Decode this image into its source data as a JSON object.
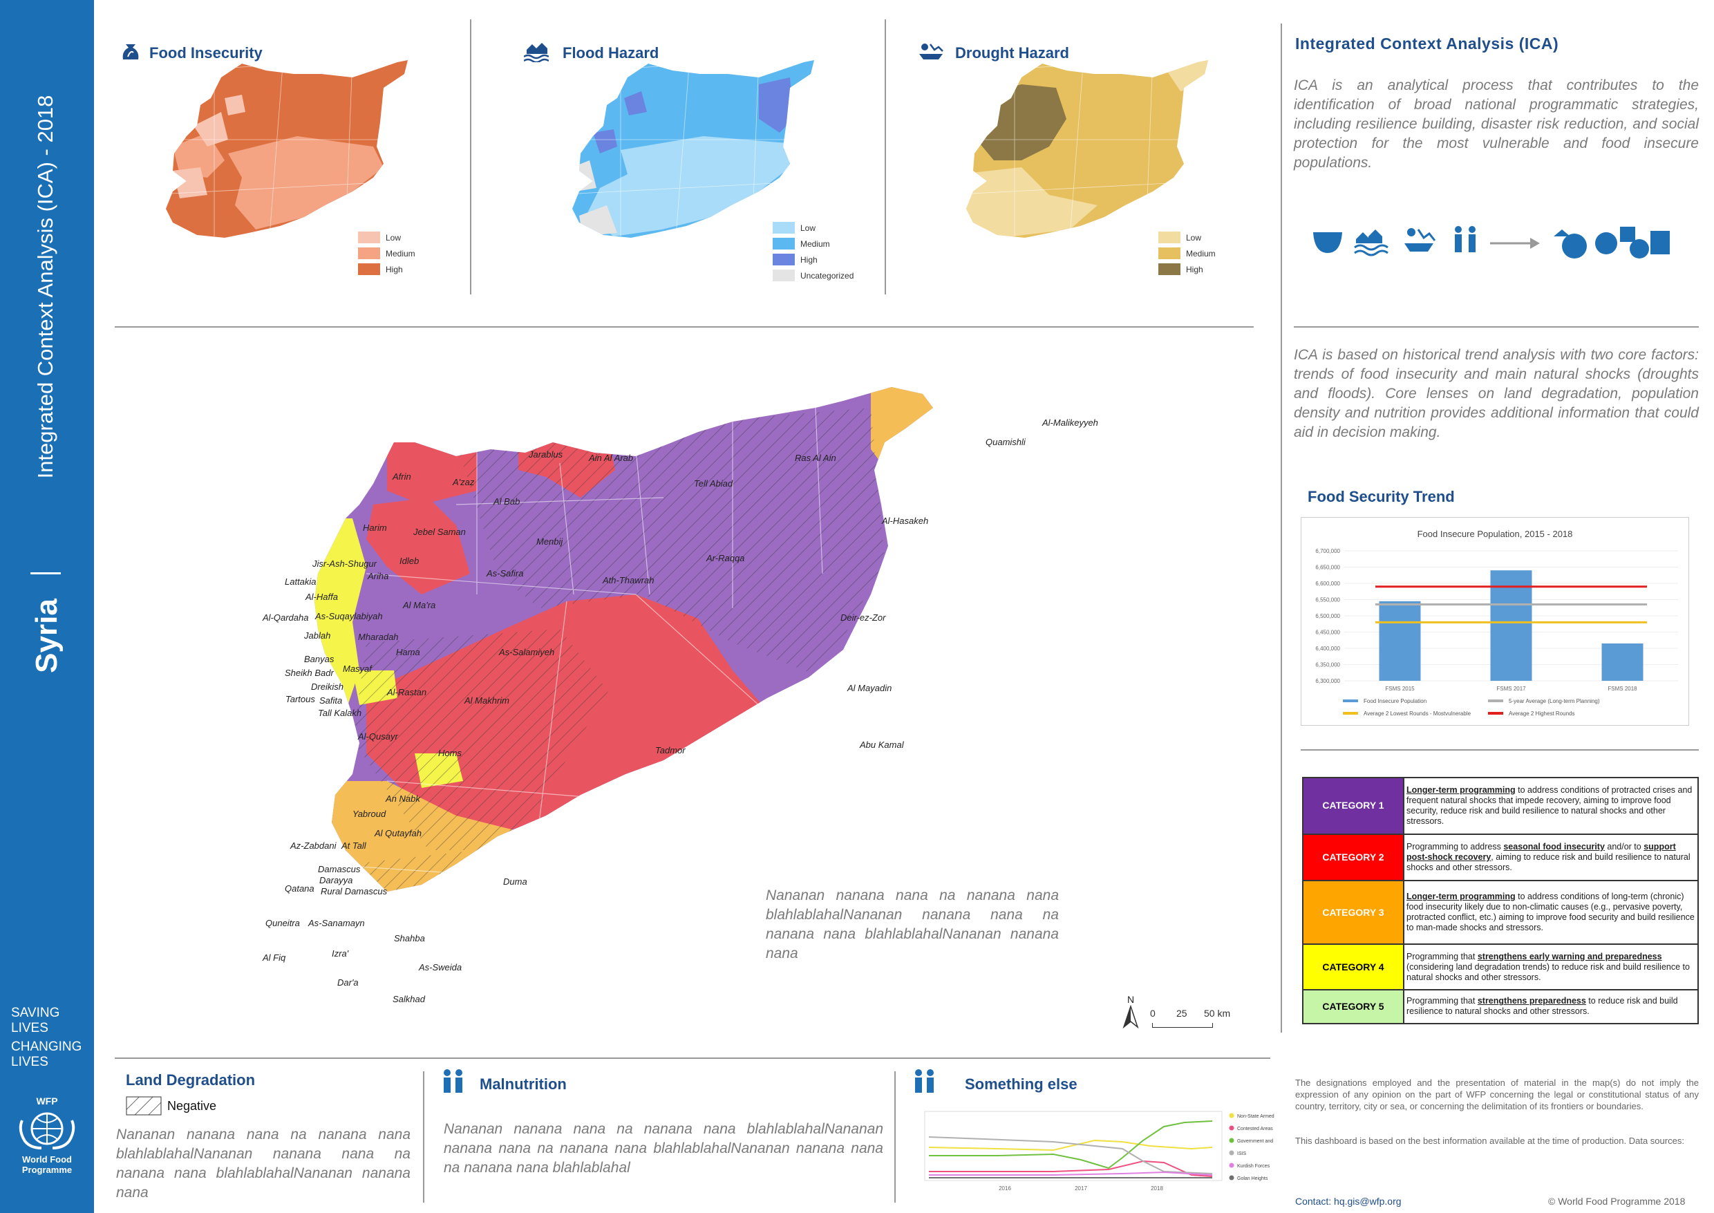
{
  "sidebar": {
    "country": "Syria",
    "title": "Integrated Context Analysis (ICA) - 2018",
    "slogan": [
      "SAVING",
      "LIVES",
      "CHANGING",
      "LIVES"
    ],
    "logo_text": [
      "WFP",
      "World Food",
      "Programme"
    ]
  },
  "top_maps": [
    {
      "title": "Food Insecurity",
      "icon": "food-sack-icon",
      "legend": [
        {
          "label": "Low",
          "color": "#f8c4b2"
        },
        {
          "label": "Medium",
          "color": "#f4a383"
        },
        {
          "label": "High",
          "color": "#dd7040"
        }
      ]
    },
    {
      "title": "Flood Hazard",
      "icon": "flood-icon",
      "legend": [
        {
          "label": "Low",
          "color": "#a8dcf8"
        },
        {
          "label": "Medium",
          "color": "#5cb8f0"
        },
        {
          "label": "High",
          "color": "#6a84e0"
        },
        {
          "label": "Uncategorized",
          "color": "#e4e4e4"
        }
      ]
    },
    {
      "title": "Drought Hazard",
      "icon": "drought-icon",
      "legend": [
        {
          "label": "Low",
          "color": "#f2dca0"
        },
        {
          "label": "Medium",
          "color": "#e6bf5e"
        },
        {
          "label": "High",
          "color": "#8c7846"
        }
      ]
    }
  ],
  "ica": {
    "title": "Integrated Context Analysis (ICA)",
    "intro": "ICA is an analytical process that contributes to the identification of broad national programmatic strategies, including resilience building, disaster risk reduction, and social protection for the most vulnerable and food insecure populations.",
    "basis": "ICA is based on historical trend analysis with two core factors: trends of food insecurity and main natural shocks (droughts and floods). Core lenses on land degradation, population density and nutrition provides additional information that could aid in decision making."
  },
  "trend": {
    "title": "Food Security Trend",
    "chart_data": {
      "type": "bar",
      "title": "Food Insecure Population, 2015 - 2018",
      "categories": [
        "FSMS 2015",
        "FSMS 2017",
        "FSMS 2018"
      ],
      "values": [
        6545000,
        6640000,
        6415000
      ],
      "ylim": [
        6300000,
        6700000
      ],
      "yticks": [
        "6,300,000",
        "6,350,000",
        "6,400,000",
        "6,450,000",
        "6,500,000",
        "6,550,000",
        "6,600,000",
        "6,650,000",
        "6,700,000"
      ],
      "lines": [
        {
          "name": "5-year Average (Long-term Planning)",
          "value": 6535000,
          "color": "#b0b0b0"
        },
        {
          "name": "Average 2 Lowest Rounds - Mostvulnerable",
          "value": 6480000,
          "color": "#f0c020"
        },
        {
          "name": "Average 2 Highest Rounds",
          "value": 6590000,
          "color": "#e02020"
        }
      ],
      "legend": [
        "Food Insecure Population",
        "5-year Average (Long-term Planning)",
        "Average 2 Lowest Rounds - Mostvulnerable",
        "Average 2 Highest Rounds"
      ]
    }
  },
  "categories": [
    {
      "label": "CATEGORY 1",
      "color": "#7030a0",
      "u": "Longer-term programming",
      "text": " to address conditions of protracted crises and frequent natural shocks that impede recovery, aiming to improve food security, reduce risk and build resilience to natural shocks and other stressors."
    },
    {
      "label": "CATEGORY 2",
      "color": "#ff0000",
      "pre": "Programming to address ",
      "u": "seasonal food insecurity",
      "mid": " and/or to ",
      "u2": "support post-shock recovery",
      "text": ", aiming to reduce risk and build resilience to natural shocks and other stressors."
    },
    {
      "label": "CATEGORY 3",
      "color": "#ffa500",
      "u": "Longer-term programming",
      "text": " to address conditions of long-term (chronic) food insecurity likely due to non-climatic causes (e.g., pervasive poverty, protracted conflict, etc.) aiming to improve food security and build resilience to man-made shocks and stressors."
    },
    {
      "label": "CATEGORY 4",
      "color": "#ffff00",
      "text_color": "#000",
      "pre": "Programming that ",
      "u": "strengthens early warning and preparedness",
      "text": " (considering land degradation trends) to reduce risk and build resilience to natural shocks and other stressors."
    },
    {
      "label": "CATEGORY 5",
      "color": "#c6f5a8",
      "text_color": "#000",
      "pre": "Programming that ",
      "u": "strengthens preparedness",
      "text": " to reduce risk and build resilience to natural shocks and other stressors."
    }
  ],
  "main_map": {
    "note": "Nananan nanana nana na nanana nana blahlablahalNananan nanana nana na nanana nana blahlablahalNananan nanana nana",
    "scale": {
      "north": "N",
      "ticks": [
        "0",
        "25",
        "50 km"
      ]
    },
    "labels": [
      "Afrin",
      "A'zaz",
      "Jarablus",
      "Ain Al Arab",
      "Tell Abiad",
      "Ras Al Ain",
      "Quamishli",
      "Al-Malikeyyeh",
      "Al Bab",
      "Harim",
      "Jebel Saman",
      "Menbij",
      "Al-Hasakeh",
      "Jisr-Ash-Shugur",
      "Idleb",
      "Ariha",
      "Lattakia",
      "Al-Haffa",
      "As-Safira",
      "Ath-Thawrah",
      "Ar-Raqqa",
      "Al Ma'ra",
      "Al-Qardaha",
      "As-Suqaylabiyah",
      "Jablah",
      "Mharadah",
      "Deir-ez-Zor",
      "Hama",
      "As-Salamiyeh",
      "Banyas",
      "Sheikh Badr",
      "Masyaf",
      "Dreikish",
      "Tartous",
      "Safita",
      "Al-Rastan",
      "Al Makhrim",
      "Al Mayadin",
      "Tall Kalakh",
      "Al-Qusayr",
      "Homs",
      "Tadmor",
      "Abu Kamal",
      "An Nabk",
      "Yabroud",
      "Al Qutayfah",
      "Az-Zabdani",
      "At Tall",
      "Damascus",
      "Darayya",
      "Rural Damascus",
      "Qatana",
      "Duma",
      "Quneitra",
      "As-Sanamayn",
      "Shahba",
      "Al Fiq",
      "Izra'",
      "As-Sweida",
      "Dar'a",
      "Salkhad"
    ]
  },
  "land": {
    "title": "Land Degradation",
    "legend": "Negative",
    "text": "Nananan nanana nana na nanana nana blahlablahalNananan nanana nana na nanana nana blahlablahalNananan nanana nana"
  },
  "malnutrition": {
    "title": "Malnutrition",
    "text": "Nananan nanana nana na nanana nana blahlablahalNananan nanana nana na nanana nana blahlablahalNananan nanana nana na nanana nana blahlablahal"
  },
  "something": {
    "title": "Something else",
    "chart_data": {
      "type": "line",
      "x_ticks": [
        "2016",
        "2017",
        "2018"
      ],
      "legend": [
        "Non-State Armed Groups",
        "Contested Areas",
        "Government and Pro-Government Forces",
        "ISIS",
        "Kurdish Forces",
        "Golan Heights"
      ],
      "colors": [
        "#f0e040",
        "#f05080",
        "#70c040",
        "#b0b0b0",
        "#e080e0",
        "#707070"
      ]
    }
  },
  "footer": {
    "disclaimer": "The designations employed and the presentation of material in the map(s) do not imply the expression of any opinion on the part of WFP concerning the legal or constitutional status of any country, territory, city or sea, or concerning the delimitation of its frontiers or boundaries.",
    "basis": "This dashboard is based on the best information available at the time of production. Data sources:",
    "contact_label": "Contact: ",
    "contact": "hq.gis@wfp.org",
    "copyright": "© World Food Programme 2018"
  }
}
